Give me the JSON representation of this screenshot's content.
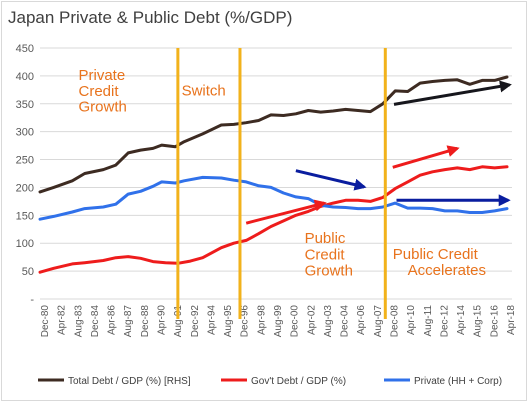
{
  "chart_data": {
    "type": "line",
    "title": "Japan Private & Public Debt (%/GDP)",
    "ylim": [
      0,
      450
    ],
    "y_ticks": [
      "-",
      "50",
      "100",
      "150",
      "200",
      "250",
      "300",
      "350",
      "400",
      "450"
    ],
    "x_tick_labels": [
      "Dec-80",
      "Apr-82",
      "Aug-83",
      "Dec-84",
      "Apr-86",
      "Aug-87",
      "Dec-88",
      "Apr-90",
      "Aug-91",
      "Dec-92",
      "Apr-94",
      "Aug-95",
      "Dec-96",
      "Apr-98",
      "Aug-99",
      "Dec-00",
      "Apr-02",
      "Aug-03",
      "Dec-04",
      "Apr-06",
      "Aug-07",
      "Dec-08",
      "Apr-10",
      "Aug-11",
      "Dec-12",
      "Apr-14",
      "Aug-15",
      "Dec-16",
      "Apr-18"
    ],
    "grid": "horizontal",
    "legend_position": "bottom",
    "series": [
      {
        "name": "Total Debt / GDP (%) [RHS]",
        "color": "#3d2b22",
        "points": [
          [
            1980.9,
            192
          ],
          [
            1982,
            200
          ],
          [
            1983.5,
            212
          ],
          [
            1984.5,
            225
          ],
          [
            1986,
            232
          ],
          [
            1987,
            240
          ],
          [
            1988,
            262
          ],
          [
            1989,
            267
          ],
          [
            1990,
            270
          ],
          [
            1990.7,
            276
          ],
          [
            1991.8,
            273
          ],
          [
            1992.5,
            282
          ],
          [
            1994,
            296
          ],
          [
            1995.5,
            312
          ],
          [
            1996.5,
            313
          ],
          [
            1997.5,
            316
          ],
          [
            1998.5,
            320
          ],
          [
            1999.5,
            330
          ],
          [
            2000.5,
            329
          ],
          [
            2001.5,
            332
          ],
          [
            2002.5,
            338
          ],
          [
            2003.5,
            335
          ],
          [
            2004.5,
            337
          ],
          [
            2005.5,
            340
          ],
          [
            2006.5,
            338
          ],
          [
            2007.5,
            336
          ],
          [
            2008.5,
            350
          ],
          [
            2009.5,
            373
          ],
          [
            2010.5,
            372
          ],
          [
            2011.5,
            387
          ],
          [
            2012.5,
            390
          ],
          [
            2013.5,
            392
          ],
          [
            2014.5,
            393
          ],
          [
            2015.5,
            385
          ],
          [
            2016.5,
            392
          ],
          [
            2017.5,
            392
          ],
          [
            2018.5,
            398
          ]
        ]
      },
      {
        "name": "Gov't Debt / GDP (%)",
        "color": "#ee1c1c",
        "points": [
          [
            1980.9,
            48
          ],
          [
            1982,
            55
          ],
          [
            1983.5,
            63
          ],
          [
            1984.5,
            65
          ],
          [
            1986,
            69
          ],
          [
            1987,
            74
          ],
          [
            1988,
            76
          ],
          [
            1989,
            73
          ],
          [
            1990,
            67
          ],
          [
            1991,
            65
          ],
          [
            1992,
            64
          ],
          [
            1993,
            68
          ],
          [
            1994,
            74
          ],
          [
            1995.5,
            92
          ],
          [
            1996.5,
            100
          ],
          [
            1997.5,
            105
          ],
          [
            1998.5,
            117
          ],
          [
            1999.5,
            130
          ],
          [
            2000.5,
            140
          ],
          [
            2001.5,
            150
          ],
          [
            2002.5,
            157
          ],
          [
            2003.5,
            166
          ],
          [
            2004.5,
            172
          ],
          [
            2005.5,
            177
          ],
          [
            2006.5,
            177
          ],
          [
            2007.5,
            175
          ],
          [
            2008.5,
            182
          ],
          [
            2009.5,
            198
          ],
          [
            2010.5,
            210
          ],
          [
            2011.5,
            222
          ],
          [
            2012.5,
            228
          ],
          [
            2013.5,
            232
          ],
          [
            2014.5,
            235
          ],
          [
            2015.5,
            232
          ],
          [
            2016.5,
            237
          ],
          [
            2017.5,
            235
          ],
          [
            2018.5,
            237
          ]
        ]
      },
      {
        "name": "Private (HH + Corp)",
        "color": "#3071ea",
        "points": [
          [
            1980.9,
            143
          ],
          [
            1982,
            148
          ],
          [
            1983.5,
            156
          ],
          [
            1984.5,
            162
          ],
          [
            1986,
            165
          ],
          [
            1987,
            170
          ],
          [
            1988,
            188
          ],
          [
            1989,
            193
          ],
          [
            1990,
            202
          ],
          [
            1990.7,
            210
          ],
          [
            1991.8,
            208
          ],
          [
            1992.5,
            212
          ],
          [
            1994,
            218
          ],
          [
            1995.5,
            217
          ],
          [
            1996.5,
            213
          ],
          [
            1997.5,
            210
          ],
          [
            1998.5,
            203
          ],
          [
            1999.5,
            200
          ],
          [
            2000.5,
            190
          ],
          [
            2001.5,
            183
          ],
          [
            2002.5,
            180
          ],
          [
            2003.5,
            168
          ],
          [
            2004.5,
            165
          ],
          [
            2005.5,
            164
          ],
          [
            2006.5,
            162
          ],
          [
            2007.5,
            162
          ],
          [
            2008.5,
            165
          ],
          [
            2009.5,
            172
          ],
          [
            2010.5,
            163
          ],
          [
            2011.5,
            163
          ],
          [
            2012.5,
            162
          ],
          [
            2013.5,
            158
          ],
          [
            2014.5,
            158
          ],
          [
            2015.5,
            155
          ],
          [
            2016.5,
            155
          ],
          [
            2017.5,
            158
          ],
          [
            2018.5,
            162
          ]
        ]
      }
    ],
    "vertical_markers": [
      1992,
      1997,
      2008.7
    ],
    "annotations": [
      {
        "text": "Private",
        "x": 1984,
        "y": 393
      },
      {
        "text": "Credit",
        "x": 1984,
        "y": 364
      },
      {
        "text": "Growth",
        "x": 1984,
        "y": 336
      },
      {
        "text": "Switch",
        "x": 1992.3,
        "y": 365
      },
      {
        "text": "Public",
        "x": 2002.2,
        "y": 100
      },
      {
        "text": "Credit",
        "x": 2002.2,
        "y": 71
      },
      {
        "text": "Growth",
        "x": 2002.2,
        "y": 42
      },
      {
        "text": "Public Credit",
        "x": 2009.3,
        "y": 72
      },
      {
        "text": "Accelerates",
        "x": 2010.5,
        "y": 43
      }
    ],
    "arrows": [
      {
        "color": "#0a1d9f",
        "from": [
          2001.5,
          230
        ],
        "to": [
          2007,
          201
        ]
      },
      {
        "color": "#ee1c1c",
        "from": [
          1997.5,
          136
        ],
        "to": [
          2003.8,
          172
        ]
      },
      {
        "color": "#ee1c1c",
        "from": [
          2009.3,
          236
        ],
        "to": [
          2014.5,
          270
        ]
      },
      {
        "color": "#16161c",
        "from": [
          2009.4,
          349
        ],
        "to": [
          2018.7,
          384
        ]
      },
      {
        "color": "#0a1d9f",
        "from": [
          2009.6,
          177
        ],
        "to": [
          2018.6,
          177
        ]
      }
    ],
    "marker_color": "#f2b21b",
    "annotation_color": "#e8731d"
  }
}
